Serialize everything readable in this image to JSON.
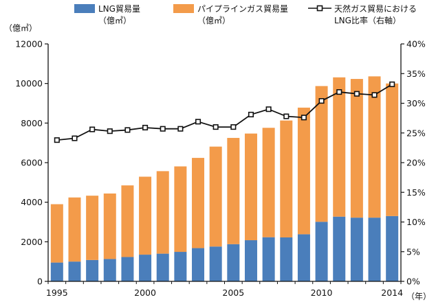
{
  "chart_data": {
    "type": "bar",
    "stacked": true,
    "x": [
      1995,
      1996,
      1997,
      1998,
      1999,
      2000,
      2001,
      2002,
      2003,
      2004,
      2005,
      2006,
      2007,
      2008,
      2009,
      2010,
      2011,
      2012,
      2013,
      2014
    ],
    "x_tick_labels": [
      "1995",
      "2000",
      "2005",
      "2010",
      "2014"
    ],
    "x_tick_years": [
      1995,
      2000,
      2005,
      2010,
      2014
    ],
    "x_unit": "（年）",
    "y_left": {
      "unit": "（億㎥）",
      "ylim": [
        0,
        12000
      ],
      "ticks": [
        0,
        2000,
        4000,
        6000,
        8000,
        10000,
        12000
      ]
    },
    "y_right": {
      "ylim": [
        0,
        40
      ],
      "ticks": [
        "0%",
        "5%",
        "10%",
        "15%",
        "20%",
        "25%",
        "30%",
        "35%",
        "40%"
      ]
    },
    "grid": false,
    "legend_placement": "top",
    "series": [
      {
        "name": "LNG貿易量",
        "name_line2": "（億㎥）",
        "kind": "bar",
        "axis": "left",
        "color": "#4a7ebb",
        "values": [
          950,
          1000,
          1080,
          1130,
          1230,
          1350,
          1400,
          1490,
          1680,
          1760,
          1880,
          2080,
          2230,
          2220,
          2380,
          3010,
          3270,
          3220,
          3220,
          3300
        ]
      },
      {
        "name": "パイプラインガス貿易量",
        "name_line2": "（億㎥）",
        "kind": "bar",
        "axis": "left",
        "color": "#f39b4a",
        "values": [
          2950,
          3240,
          3250,
          3310,
          3620,
          3940,
          4170,
          4320,
          4560,
          5050,
          5370,
          5390,
          5530,
          5910,
          6400,
          6860,
          7040,
          7010,
          7140,
          6700
        ]
      },
      {
        "name": "天然ガス貿易における",
        "name_line2": "LNG比率（右軸）",
        "kind": "line",
        "axis": "right",
        "color": "#111111",
        "marker": "square-open",
        "values": [
          23.8,
          24.1,
          25.6,
          25.3,
          25.5,
          25.9,
          25.7,
          25.7,
          26.9,
          26.0,
          26.0,
          28.1,
          29.0,
          27.8,
          27.6,
          30.4,
          31.9,
          31.6,
          31.4,
          33.2
        ]
      }
    ]
  }
}
